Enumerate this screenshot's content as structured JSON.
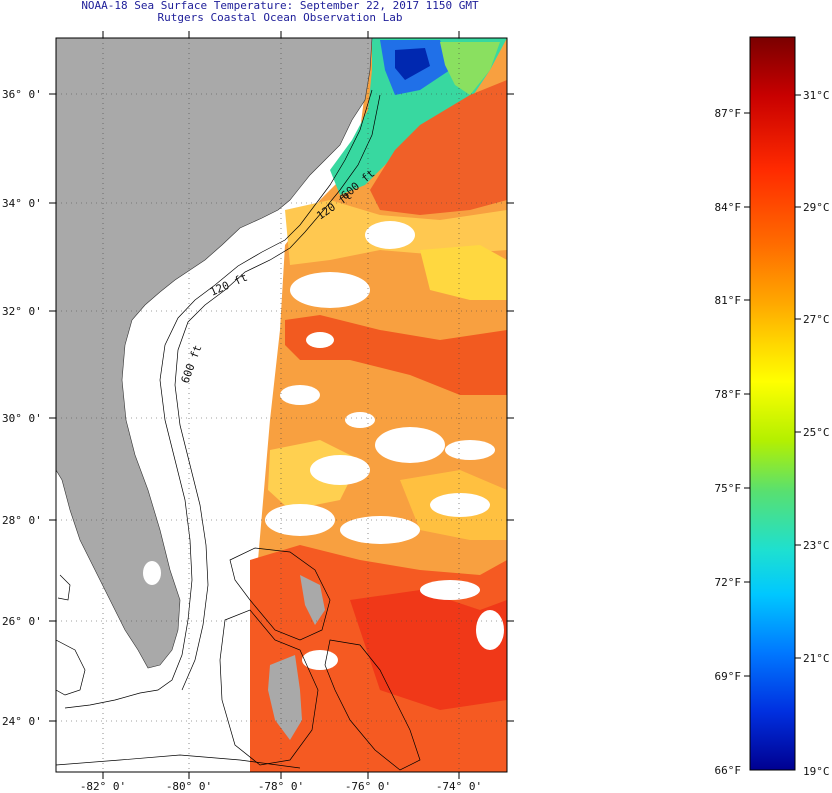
{
  "header": {
    "title": "NOAA-18 Sea Surface Temperature:  September 22, 2017 1150 GMT",
    "subtitle": "Rutgers Coastal Ocean Observation Lab"
  },
  "map": {
    "lat_ticks": [
      "36° 0'",
      "34° 0'",
      "32° 0'",
      "30° 0'",
      "28° 0'",
      "26° 0'",
      "24° 0'"
    ],
    "lon_ticks": [
      "-82° 0'",
      "-80° 0'",
      "-78° 0'",
      "-76° 0'",
      "-74° 0'"
    ],
    "contour_labels": [
      "120 ft",
      "600 ft",
      "120 ft",
      "600 ft"
    ],
    "colors": {
      "land": "#a9a9a9",
      "no_data": "#ffffff",
      "frame": "#000000"
    }
  },
  "colorbar": {
    "min_f": "66°F",
    "min_c": "19°C",
    "fahrenheit_ticks": [
      "87°F",
      "84°F",
      "81°F",
      "78°F",
      "75°F",
      "72°F",
      "69°F"
    ],
    "celsius_ticks": [
      "31°C",
      "29°C",
      "27°C",
      "25°C",
      "23°C",
      "21°C"
    ],
    "gradient": [
      "#7a0000",
      "#c80000",
      "#ff2a00",
      "#ff6a00",
      "#ffa500",
      "#ffd800",
      "#ffff00",
      "#b4f000",
      "#58e070",
      "#1ee0d0",
      "#00c8ff",
      "#0078ff",
      "#0030e0",
      "#000090"
    ]
  }
}
